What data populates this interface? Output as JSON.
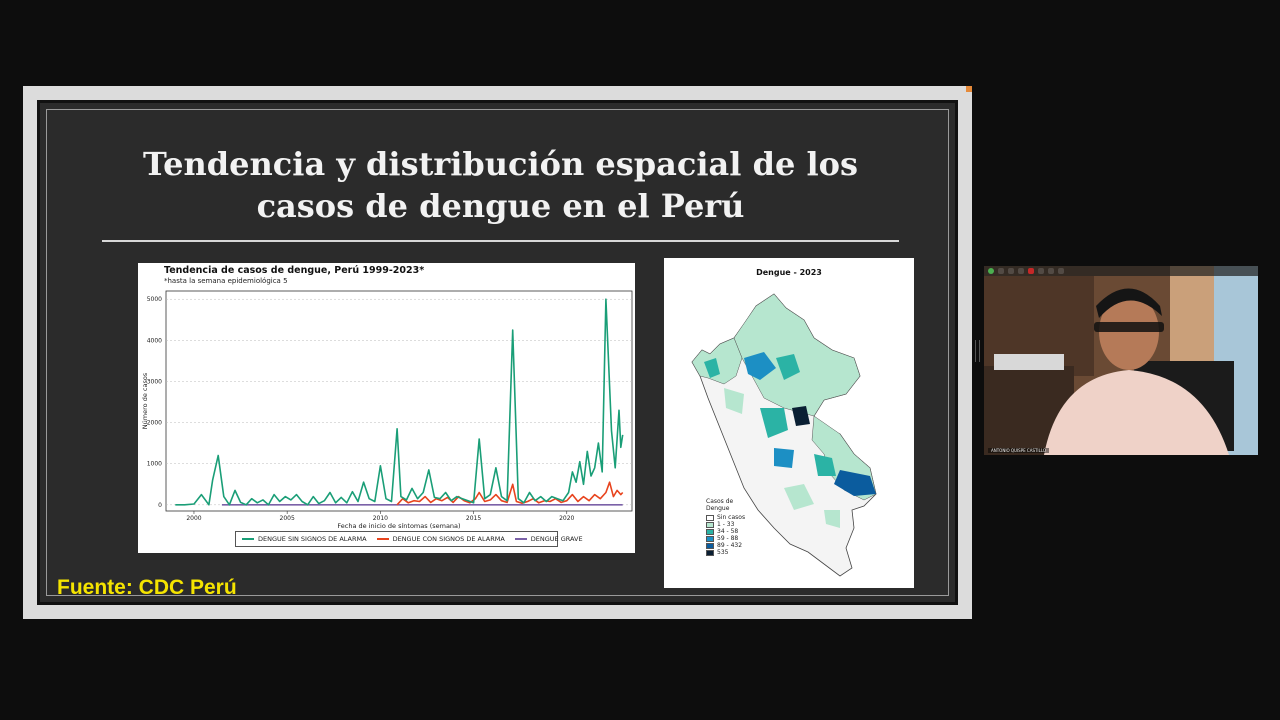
{
  "slide": {
    "title_line1": "Tendencia y distribución espacial de los",
    "title_line2": "casos de dengue en el Perú",
    "source": "Fuente: CDC Perú"
  },
  "chart_data": {
    "type": "line",
    "title": "Tendencia de casos de dengue, Perú 1999-2023*",
    "subtitle": "*hasta la semana epidemiológica 5",
    "xlabel": "Fecha de inicio de síntomas (semana)",
    "ylabel": "Número de casos",
    "xlim": [
      1998.5,
      2023.5
    ],
    "ylim": [
      -150,
      5200
    ],
    "x_ticks": [
      2000,
      2005,
      2010,
      2015,
      2020
    ],
    "y_ticks": [
      0,
      1000,
      2000,
      3000,
      4000,
      5000
    ],
    "grid": true,
    "legend_position": "bottom",
    "x": [
      1999.0,
      1999.5,
      2000.0,
      2000.4,
      2000.8,
      2001.0,
      2001.3,
      2001.6,
      2001.9,
      2002.2,
      2002.5,
      2002.8,
      2003.1,
      2003.4,
      2003.7,
      2004.0,
      2004.3,
      2004.6,
      2004.9,
      2005.2,
      2005.5,
      2005.8,
      2006.1,
      2006.4,
      2006.7,
      2007.0,
      2007.3,
      2007.6,
      2007.9,
      2008.2,
      2008.5,
      2008.8,
      2009.1,
      2009.4,
      2009.7,
      2010.0,
      2010.3,
      2010.6,
      2010.9,
      2011.1,
      2011.4,
      2011.7,
      2012.0,
      2012.3,
      2012.6,
      2012.9,
      2013.2,
      2013.5,
      2013.8,
      2014.1,
      2014.4,
      2014.7,
      2015.0,
      2015.3,
      2015.6,
      2015.9,
      2016.2,
      2016.5,
      2016.8,
      2017.1,
      2017.4,
      2017.7,
      2018.0,
      2018.3,
      2018.6,
      2018.9,
      2019.2,
      2019.5,
      2019.8,
      2020.1,
      2020.3,
      2020.5,
      2020.7,
      2020.9,
      2021.1,
      2021.3,
      2021.5,
      2021.7,
      2021.9,
      2022.1,
      2022.4,
      2022.6,
      2022.8,
      2022.9,
      2023.0
    ],
    "series": [
      {
        "name": "DENGUE SIN SIGNOS DE ALARMA",
        "color": "#1a9e77",
        "values": [
          0,
          0,
          20,
          250,
          0,
          600,
          1200,
          200,
          0,
          350,
          60,
          0,
          150,
          50,
          120,
          0,
          250,
          80,
          200,
          120,
          250,
          80,
          0,
          200,
          30,
          100,
          300,
          50,
          180,
          50,
          320,
          80,
          550,
          150,
          80,
          950,
          150,
          80,
          1850,
          200,
          120,
          400,
          150,
          300,
          850,
          180,
          150,
          300,
          100,
          200,
          150,
          100,
          50,
          1600,
          150,
          250,
          900,
          200,
          100,
          4250,
          150,
          50,
          300,
          100,
          200,
          80,
          200,
          150,
          100,
          300,
          800,
          550,
          1050,
          500,
          1300,
          700,
          900,
          1500,
          800,
          5000,
          1800,
          900,
          2300,
          1400,
          1700
        ]
      },
      {
        "name": "DENGUE CON SIGNOS DE ALARMA",
        "color": "#e8441e",
        "values": [
          0,
          0,
          0,
          0,
          0,
          0,
          0,
          0,
          0,
          0,
          0,
          0,
          0,
          0,
          0,
          0,
          0,
          0,
          0,
          0,
          0,
          0,
          0,
          0,
          0,
          0,
          0,
          0,
          0,
          0,
          0,
          0,
          0,
          0,
          0,
          0,
          0,
          0,
          0,
          0,
          0,
          0,
          0,
          0,
          0,
          0,
          0,
          0,
          0,
          0,
          0,
          0,
          0,
          0,
          0,
          0,
          0,
          0,
          0,
          0,
          0,
          0,
          0,
          0,
          0,
          0,
          0,
          0,
          0,
          0,
          0,
          0,
          0,
          0,
          0,
          0,
          0,
          0,
          0,
          0,
          0,
          0,
          0,
          0,
          0
        ]
      },
      {
        "name": "DENGUE GRAVE",
        "color": "#7b61a8",
        "values": [
          0,
          0,
          0,
          0,
          0,
          0,
          0,
          0,
          0,
          0,
          0,
          0,
          0,
          0,
          0,
          0,
          0,
          0,
          0,
          0,
          0,
          0,
          0,
          0,
          0,
          0,
          0,
          0,
          0,
          0,
          0,
          0,
          0,
          0,
          0,
          0,
          0,
          0,
          0,
          0,
          0,
          0,
          0,
          0,
          0,
          0,
          0,
          0,
          0,
          0,
          0,
          0,
          0,
          0,
          0,
          0,
          0,
          0,
          0,
          0,
          0,
          0,
          0,
          0,
          0,
          0,
          0,
          0,
          0,
          0,
          0,
          0,
          0,
          0,
          0,
          0,
          0,
          0,
          0,
          0,
          0,
          0,
          0,
          0,
          0
        ]
      }
    ],
    "alarm_series": {
      "x": [
        2010.9,
        2011.2,
        2011.5,
        2011.8,
        2012.1,
        2012.4,
        2012.7,
        2013.0,
        2013.3,
        2013.6,
        2013.9,
        2014.2,
        2014.5,
        2014.8,
        2015.1,
        2015.3,
        2015.6,
        2015.9,
        2016.2,
        2016.5,
        2016.8,
        2017.1,
        2017.3,
        2017.6,
        2017.9,
        2018.2,
        2018.5,
        2018.8,
        2019.1,
        2019.4,
        2019.7,
        2020.0,
        2020.3,
        2020.6,
        2020.9,
        2021.2,
        2021.5,
        2021.8,
        2022.1,
        2022.3,
        2022.5,
        2022.7,
        2022.9,
        2023.0
      ],
      "values": [
        0,
        150,
        50,
        100,
        80,
        200,
        60,
        150,
        100,
        180,
        60,
        200,
        100,
        50,
        150,
        300,
        80,
        120,
        250,
        100,
        60,
        500,
        80,
        40,
        80,
        150,
        50,
        100,
        80,
        150,
        60,
        100,
        250,
        80,
        200,
        100,
        250,
        150,
        300,
        550,
        200,
        350,
        250,
        300
      ]
    }
  },
  "map": {
    "title": "Dengue - 2023",
    "legend_title_line1": "Casos de",
    "legend_title_line2": "Dengue",
    "legend": [
      {
        "label": "Sin casos",
        "color": "#ffffff"
      },
      {
        "label": "1 - 33",
        "color": "#b6e6cf"
      },
      {
        "label": "34 - 58",
        "color": "#2bb3a5"
      },
      {
        "label": "59 - 88",
        "color": "#1c8fc4"
      },
      {
        "label": "89 - 432",
        "color": "#0b5c9e"
      },
      {
        "label": "535",
        "color": "#0a1f33"
      }
    ]
  },
  "video": {
    "participant_name": "ANTONIO QUISPE CASTILLO"
  }
}
